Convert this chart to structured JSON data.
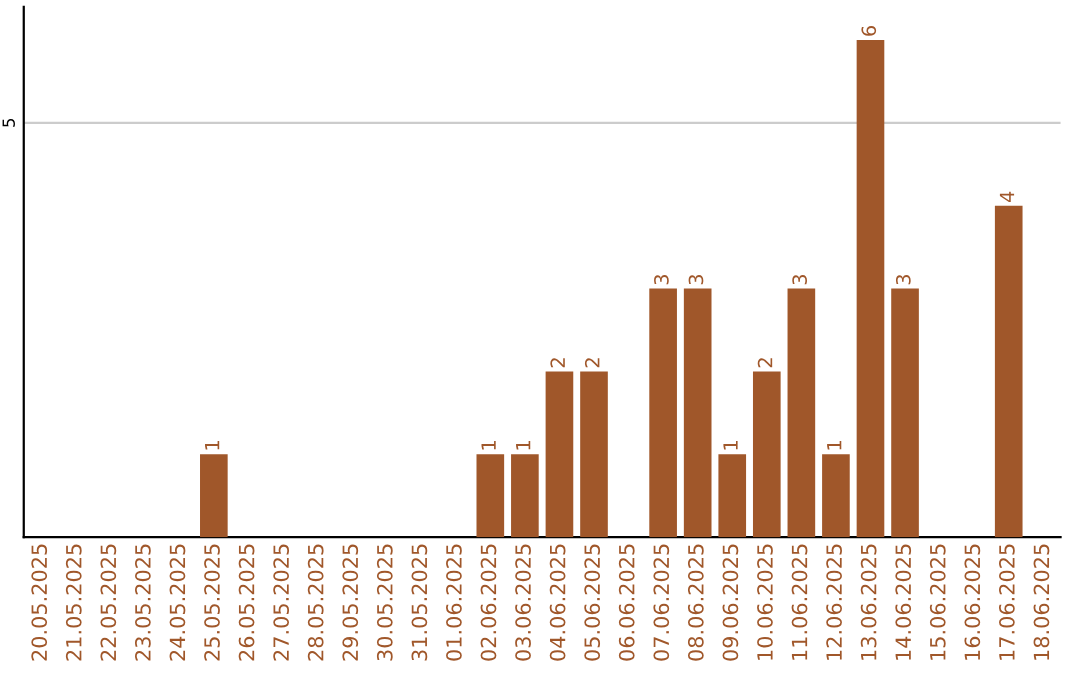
{
  "chart_data": {
    "type": "bar",
    "categories": [
      "20.05.2025",
      "21.05.2025",
      "22.05.2025",
      "23.05.2025",
      "24.05.2025",
      "25.05.2025",
      "26.05.2025",
      "27.05.2025",
      "28.05.2025",
      "29.05.2025",
      "30.05.2025",
      "31.05.2025",
      "01.06.2025",
      "02.06.2025",
      "03.06.2025",
      "04.06.2025",
      "05.06.2025",
      "06.06.2025",
      "07.06.2025",
      "08.06.2025",
      "09.06.2025",
      "10.06.2025",
      "11.06.2025",
      "12.06.2025",
      "13.06.2025",
      "14.06.2025",
      "15.06.2025",
      "16.06.2025",
      "17.06.2025",
      "18.06.2025"
    ],
    "values": [
      0,
      0,
      0,
      0,
      0,
      1,
      0,
      0,
      0,
      0,
      0,
      0,
      0,
      1,
      1,
      2,
      2,
      0,
      3,
      3,
      1,
      2,
      3,
      1,
      6,
      3,
      0,
      0,
      4,
      0
    ],
    "value_labels": [
      null,
      null,
      null,
      null,
      null,
      "1",
      null,
      null,
      null,
      null,
      null,
      null,
      null,
      "1",
      "1",
      "2",
      "2",
      null,
      "3",
      "3",
      "1",
      "2",
      "3",
      "1",
      "6",
      "3",
      null,
      null,
      "4",
      null
    ],
    "color": "#a0572a",
    "ylim": [
      0,
      6.4
    ],
    "yticks": [
      5
    ],
    "grid": "y"
  }
}
